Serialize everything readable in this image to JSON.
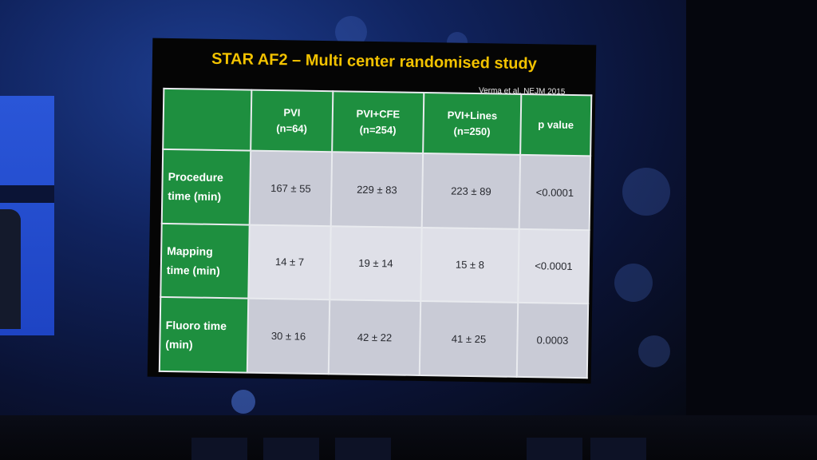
{
  "slide": {
    "title": "STAR AF2 – Multi center randomised study",
    "citation": "Verma et al, NEJM 2015"
  },
  "table": {
    "columns": [
      "PVI\n(n=64)",
      "PVI+CFE\n(n=254)",
      "PVI+Lines\n(n=250)",
      "p value"
    ],
    "rows": [
      {
        "label": "Procedure\ntime (min)",
        "cells": [
          "167 ± 55",
          "229 ± 83",
          "223 ± 89",
          "<0.0001"
        ]
      },
      {
        "label": "Mapping\ntime (min)",
        "cells": [
          "14 ± 7",
          "19 ± 14",
          "15 ± 8",
          "<0.0001"
        ]
      },
      {
        "label": "Fluoro time\n(min)",
        "cells": [
          "30 ± 16",
          "42 ± 22",
          "41 ± 25",
          "0.0003"
        ]
      }
    ]
  },
  "colors": {
    "title": "#f2c200",
    "header_green": "#1e8f3f",
    "row_light": "#dfe0e8",
    "row_dark": "#c9cbd6"
  }
}
